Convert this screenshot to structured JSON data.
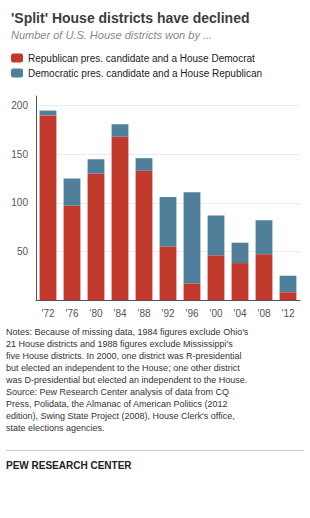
{
  "chart_data": {
    "type": "bar",
    "stacked": true,
    "title": "'Split' House districts have declined",
    "subtitle": "Number of U.S. House districts won by ...",
    "categories": [
      "'72",
      "'76",
      "'80",
      "'84",
      "'88",
      "'92",
      "'96",
      "'00",
      "'04",
      "'08",
      "'12"
    ],
    "series": [
      {
        "name": "Republican pres. candidate and a House Democrat",
        "color": "#C0392B",
        "values": [
          190,
          97,
          130,
          168,
          133,
          55,
          17,
          46,
          38,
          47,
          8
        ]
      },
      {
        "name": "Democratic pres. candidate and a House Republican",
        "color": "#4F7F9B",
        "values": [
          5,
          28,
          15,
          13,
          13,
          51,
          94,
          41,
          21,
          35,
          17
        ]
      }
    ],
    "ylim": [
      0,
      210
    ],
    "yticks": [
      50,
      100,
      150,
      200
    ],
    "grid": true,
    "legend": "top",
    "notes": "Notes: Because of missing data, 1984 figures exclude Ohio's\n21 House districts and 1988 figures exclude Mississippi's\nfive House districts. In 2000, one district was R-presidential\nbut elected an independent to the House; one other district\nwas D-presidential but elected an independent to the House.\nSource: Pew Research Center analysis of data from CQ\nPress, Polidata, the Almanac of American Politics (2012\nedition), Swing State Project (2008), House Clerk's office,\nstate elections agencies.",
    "footer": "PEW RESEARCH CENTER"
  }
}
